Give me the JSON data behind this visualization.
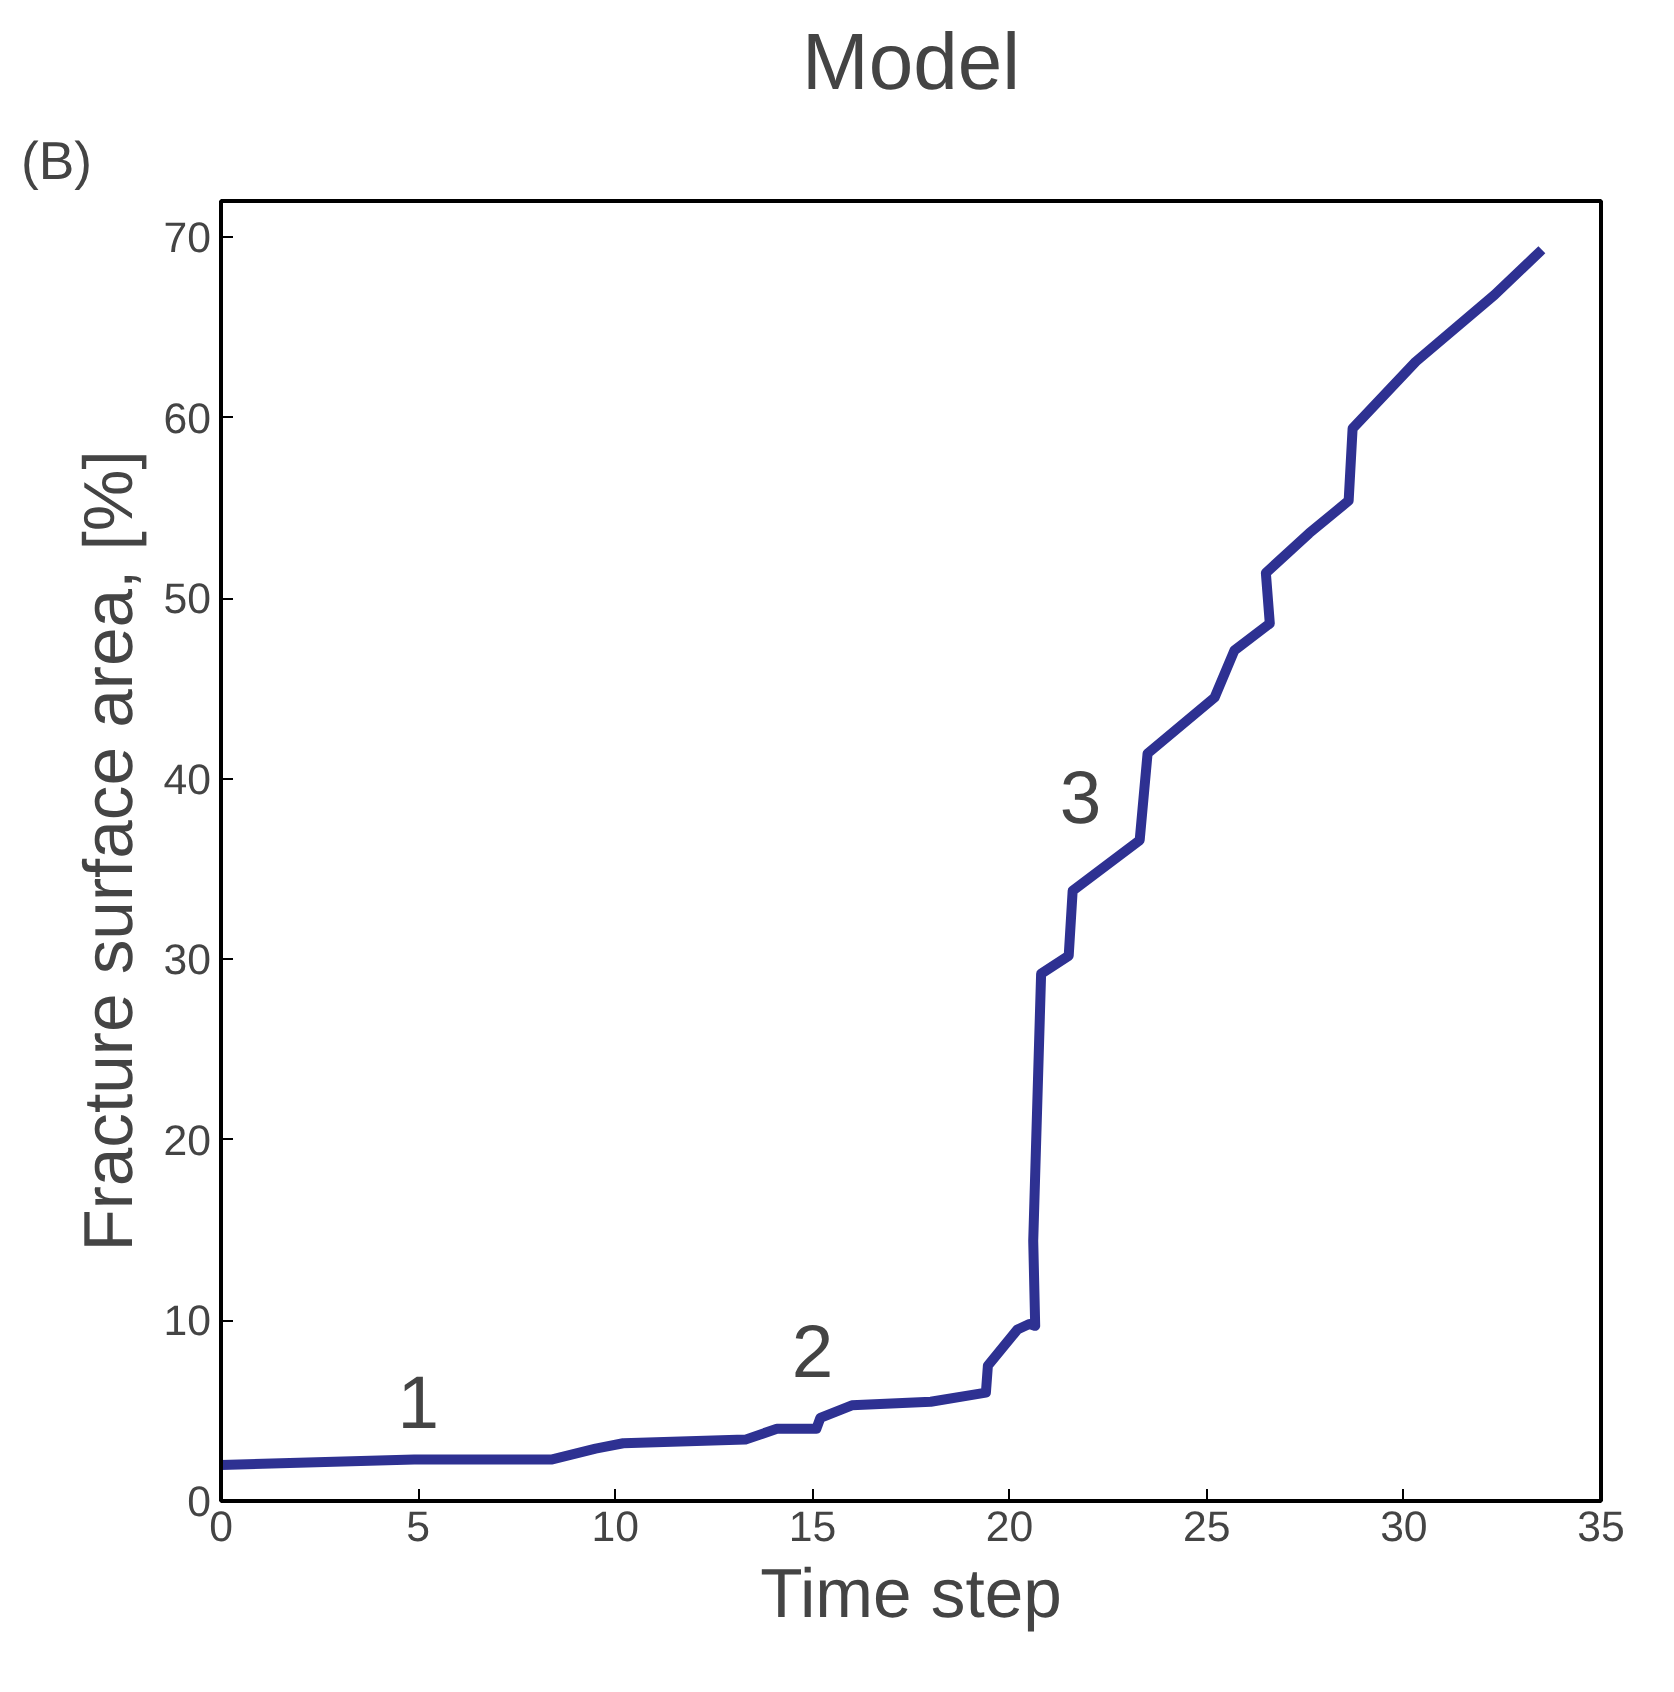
{
  "chart_data": {
    "type": "line",
    "title": "Model",
    "xlabel": "Time step",
    "ylabel": "Fracture surface area, [%]",
    "xlim": [
      0,
      35
    ],
    "ylim": [
      0,
      72
    ],
    "xticks": [
      0,
      5,
      10,
      15,
      20,
      25,
      30,
      35
    ],
    "yticks": [
      0,
      10,
      20,
      30,
      40,
      50,
      60,
      70
    ],
    "grid": false,
    "marker": "none",
    "line_style": "solid",
    "annotations": [
      "(B)",
      "1",
      "2",
      "3"
    ],
    "series": [
      {
        "color": "#2e3192",
        "x": [
          0,
          4.9,
          8.4,
          9.5,
          10.2,
          13.3,
          14.1,
          15.1,
          15.2,
          16.0,
          18.0,
          19.4,
          19.45,
          20.2,
          20.5,
          20.65,
          20.6,
          20.8,
          21.5,
          21.6,
          23.3,
          23.5,
          25.2,
          25.7,
          26.6,
          26.5,
          27.6,
          28.6,
          28.7,
          30.3,
          32.3,
          33.5
        ],
        "values": [
          2.0,
          2.3,
          2.3,
          2.9,
          3.2,
          3.4,
          4.0,
          4.0,
          4.6,
          5.3,
          5.5,
          6.0,
          7.5,
          9.5,
          9.8,
          9.7,
          14.4,
          29.2,
          30.2,
          33.8,
          36.6,
          41.4,
          44.5,
          47.1,
          48.6,
          51.4,
          53.6,
          55.4,
          59.4,
          63.1,
          66.8,
          69.3
        ]
      }
    ]
  }
}
